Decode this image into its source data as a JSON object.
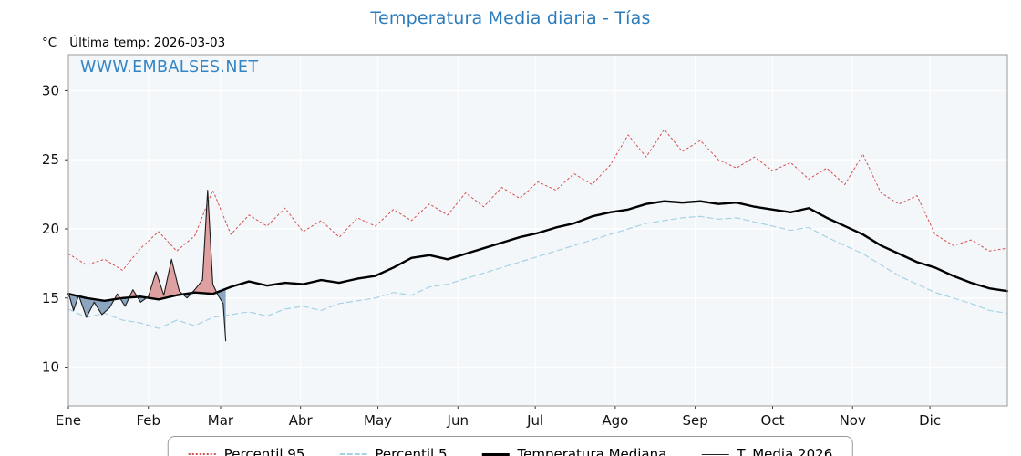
{
  "page": {
    "title": "Temperatura Media diaria - Tías",
    "unit_label": "°C",
    "last_temp_label": "Última temp: 2026-03-03",
    "watermark": "WWW.EMBALSES.NET"
  },
  "legend": {
    "items": [
      {
        "label": "Percentil 95",
        "style": "dotted-red"
      },
      {
        "label": "Percentil 5",
        "style": "dashed-lightblue"
      },
      {
        "label": "Temperatura Mediana",
        "style": "solid-black-thick"
      },
      {
        "label": "T. Media 2026",
        "style": "solid-black-thin"
      }
    ]
  },
  "colors": {
    "title_blue": "#2b7cbd",
    "watermark_blue": "#3585c5",
    "percentil95_red": "#d64f4f",
    "percentil5_blue": "#a7d2e4",
    "median_black": "#000000",
    "media2026_black": "#1a1a1a",
    "fill_above": "rgba(205,90,90,0.55)",
    "fill_below": "rgba(95,130,168,0.7)",
    "plot_background": "#f3f7fa",
    "grid_white": "#ffffff"
  },
  "chart_data": {
    "type": "line",
    "title": "Temperatura Media diaria - Tías",
    "xlabel": "",
    "ylabel": "°C",
    "ylim": [
      7.2,
      32.6
    ],
    "yticks": [
      10,
      15,
      20,
      25,
      30
    ],
    "x_range": [
      1,
      365
    ],
    "x_months": [
      {
        "label": "Ene",
        "day": 1
      },
      {
        "label": "Feb",
        "day": 32
      },
      {
        "label": "Mar",
        "day": 60
      },
      {
        "label": "Abr",
        "day": 91
      },
      {
        "label": "May",
        "day": 121
      },
      {
        "label": "Jun",
        "day": 152
      },
      {
        "label": "Jul",
        "day": 182
      },
      {
        "label": "Ago",
        "day": 213
      },
      {
        "label": "Sep",
        "day": 244
      },
      {
        "label": "Oct",
        "day": 274
      },
      {
        "label": "Nov",
        "day": 305
      },
      {
        "label": "Dic",
        "day": 335
      }
    ],
    "plot_bg": "#f3f7fa",
    "series": [
      {
        "name": "Percentil 95",
        "color": "#d64f4f",
        "width": 1,
        "dash": "2 3",
        "x": [
          1,
          8,
          15,
          22,
          29,
          36,
          43,
          50,
          57,
          64,
          71,
          78,
          85,
          92,
          99,
          106,
          113,
          120,
          127,
          134,
          141,
          148,
          155,
          162,
          169,
          176,
          183,
          190,
          197,
          204,
          211,
          218,
          225,
          232,
          239,
          246,
          253,
          260,
          267,
          274,
          281,
          288,
          295,
          302,
          309,
          316,
          323,
          330,
          337,
          344,
          351,
          358,
          365
        ],
        "values": [
          18.2,
          17.4,
          17.8,
          17.0,
          18.6,
          19.8,
          18.4,
          19.5,
          22.8,
          19.6,
          21.0,
          20.2,
          21.5,
          19.8,
          20.6,
          19.4,
          20.8,
          20.2,
          21.4,
          20.6,
          21.8,
          21.0,
          22.6,
          21.6,
          23.0,
          22.2,
          23.4,
          22.8,
          24.0,
          23.2,
          24.6,
          26.8,
          25.2,
          27.2,
          25.6,
          26.4,
          25.0,
          24.4,
          25.2,
          24.2,
          24.8,
          23.6,
          24.4,
          23.2,
          25.4,
          22.6,
          21.8,
          22.4,
          19.6,
          18.8,
          19.2,
          18.4,
          18.6
        ]
      },
      {
        "name": "Percentil 5",
        "color": "#a7d2e4",
        "width": 1.2,
        "dash": "6 4",
        "x": [
          1,
          8,
          15,
          22,
          29,
          36,
          43,
          50,
          57,
          64,
          71,
          78,
          85,
          92,
          99,
          106,
          113,
          120,
          127,
          134,
          141,
          148,
          155,
          162,
          169,
          176,
          183,
          190,
          197,
          204,
          211,
          218,
          225,
          232,
          239,
          246,
          253,
          260,
          267,
          274,
          281,
          288,
          295,
          302,
          309,
          316,
          323,
          330,
          337,
          344,
          351,
          358,
          365
        ],
        "values": [
          14.2,
          13.6,
          13.9,
          13.4,
          13.2,
          12.8,
          13.4,
          13.0,
          13.6,
          13.8,
          14.0,
          13.7,
          14.2,
          14.4,
          14.1,
          14.6,
          14.8,
          15.0,
          15.4,
          15.2,
          15.8,
          16.0,
          16.4,
          16.8,
          17.2,
          17.6,
          18.0,
          18.4,
          18.8,
          19.2,
          19.6,
          20.0,
          20.4,
          20.6,
          20.8,
          20.9,
          20.7,
          20.8,
          20.5,
          20.2,
          19.9,
          20.1,
          19.4,
          18.8,
          18.2,
          17.4,
          16.6,
          16.0,
          15.4,
          15.0,
          14.6,
          14.1,
          13.9
        ]
      },
      {
        "name": "Temperatura Mediana",
        "color": "#000000",
        "width": 2.4,
        "dash": "",
        "x": [
          1,
          8,
          15,
          22,
          29,
          36,
          43,
          50,
          57,
          64,
          71,
          78,
          85,
          92,
          99,
          106,
          113,
          120,
          127,
          134,
          141,
          148,
          155,
          162,
          169,
          176,
          183,
          190,
          197,
          204,
          211,
          218,
          225,
          232,
          239,
          246,
          253,
          260,
          267,
          274,
          281,
          288,
          295,
          302,
          309,
          316,
          323,
          330,
          337,
          344,
          351,
          358,
          365
        ],
        "values": [
          15.3,
          15.0,
          14.8,
          15.0,
          15.1,
          14.9,
          15.2,
          15.4,
          15.3,
          15.8,
          16.2,
          15.9,
          16.1,
          16.0,
          16.3,
          16.1,
          16.4,
          16.6,
          17.2,
          17.9,
          18.1,
          17.8,
          18.2,
          18.6,
          19.0,
          19.4,
          19.7,
          20.1,
          20.4,
          20.9,
          21.2,
          21.4,
          21.8,
          22.0,
          21.9,
          22.0,
          21.8,
          21.9,
          21.6,
          21.4,
          21.2,
          21.5,
          20.8,
          20.2,
          19.6,
          18.8,
          18.2,
          17.6,
          17.2,
          16.6,
          16.1,
          15.7,
          15.5
        ]
      },
      {
        "name": "T. Media 2026",
        "color": "#1a1a1a",
        "width": 1.1,
        "dash": "",
        "x": [
          1,
          3,
          5,
          8,
          11,
          14,
          17,
          20,
          23,
          26,
          29,
          32,
          35,
          38,
          41,
          44,
          47,
          50,
          53,
          55,
          57,
          59,
          61,
          62
        ],
        "values": [
          15.4,
          14.1,
          15.2,
          13.6,
          14.7,
          13.8,
          14.3,
          15.3,
          14.4,
          15.6,
          14.7,
          15.1,
          16.9,
          15.2,
          17.8,
          15.5,
          15.0,
          15.6,
          16.3,
          22.8,
          16.0,
          15.2,
          14.6,
          11.9
        ]
      }
    ],
    "fill": {
      "series": "T. Media 2026",
      "baseline": "Temperatura Mediana",
      "above": "rgba(205,90,90,0.55)",
      "below": "rgba(95,130,168,0.7)"
    },
    "legend_position": "bottom-center",
    "grid": true
  }
}
